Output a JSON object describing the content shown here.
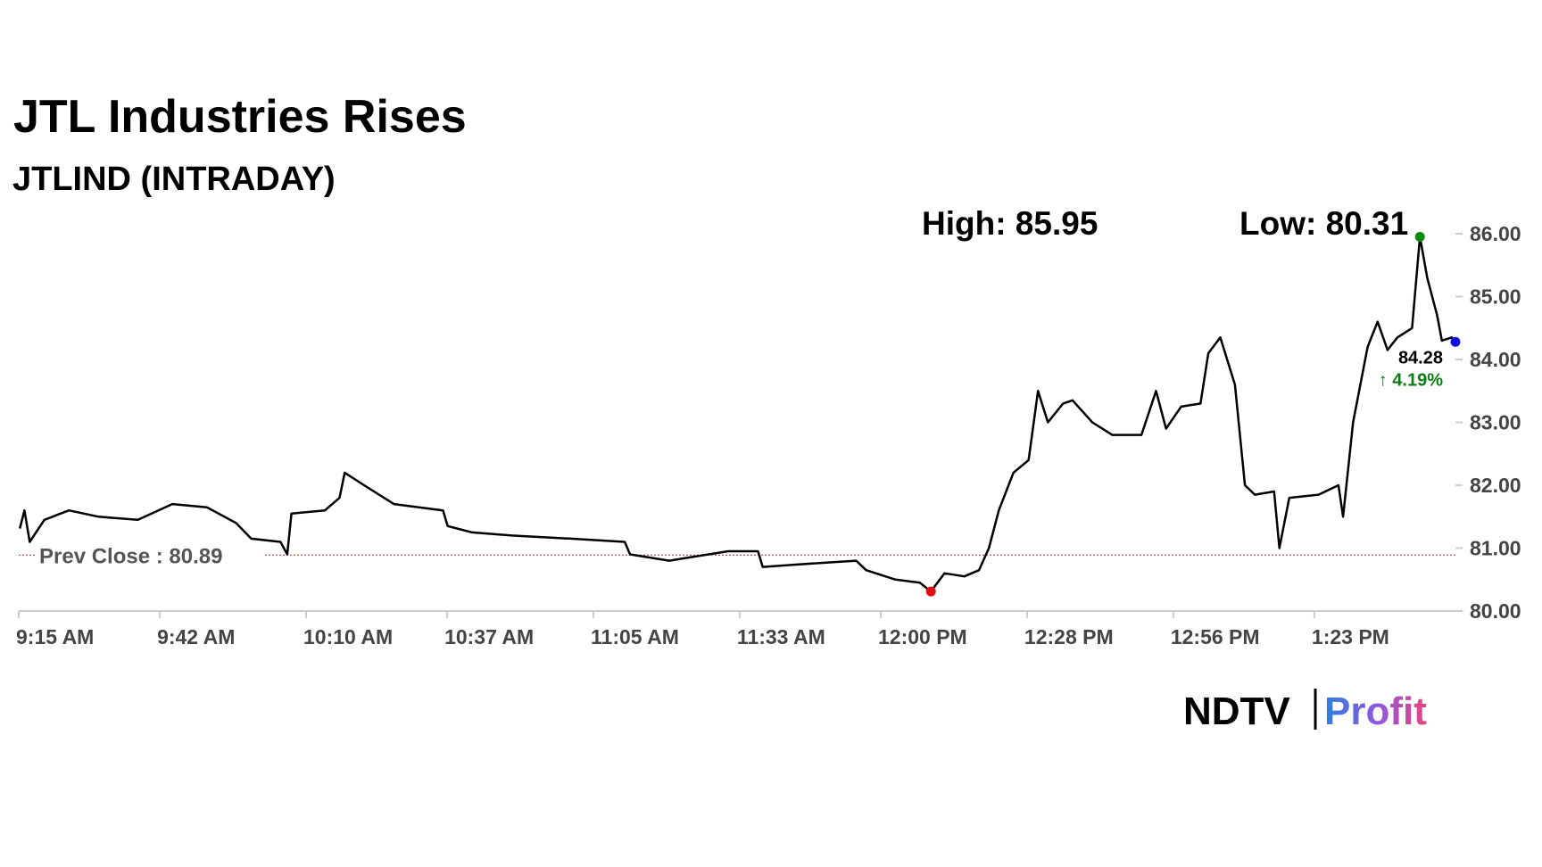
{
  "chart_data": {
    "type": "line",
    "title": "JTL Industries Rises",
    "subtitle": "JTLIND (INTRADAY)",
    "annotations": {
      "high": {
        "label": "High: 85.95",
        "value": 85.95
      },
      "low": {
        "label": "Low: 80.31",
        "value": 80.31
      }
    },
    "last_label": "84.28",
    "change_label": "↑ 4.19%",
    "prev_close": {
      "label": "Prev Close : 80.89",
      "value": 80.89,
      "color": "#b22222"
    },
    "logo": {
      "left": "NDTV",
      "right": "Profit"
    },
    "x": [
      0.2,
      1.1,
      2.1,
      4.9,
      9.6,
      15.3,
      22.8,
      29.4,
      36.0,
      41.6,
      44.5,
      50.1,
      51.4,
      52.2,
      58.6,
      61.4,
      62.4,
      66.1,
      71.8,
      81.2,
      82.1,
      86.8,
      94.4,
      105.7,
      116.0,
      117.0,
      124.5,
      135.8,
      141.5,
      142.4,
      150.9,
      160.3,
      162.2,
      167.8,
      172.5,
      174.6,
      177.2,
      181.0,
      183.8,
      185.7,
      187.6,
      190.4,
      193.3,
      195.1,
      197.0,
      199.9,
      201.7,
      205.5,
      209.3,
      214.9,
      217.7,
      219.6,
      222.5,
      226.2,
      227.7,
      230.0,
      232.8,
      234.7,
      236.6,
      240.3,
      241.3,
      243.2,
      248.8,
      252.6,
      253.5,
      255.4,
      258.2,
      260.1,
      262.0,
      263.9,
      266.7,
      268.2,
      269.6,
      271.5,
      272.4,
      274.3,
      275
    ],
    "series": [
      {
        "name": "JTLIND",
        "color": "#000000",
        "values": [
          81.31,
          81.6,
          81.1,
          81.45,
          81.6,
          81.5,
          81.45,
          81.7,
          81.65,
          81.4,
          81.15,
          81.1,
          80.9,
          81.55,
          81.6,
          81.8,
          82.2,
          82.0,
          81.7,
          81.6,
          81.35,
          81.25,
          81.2,
          81.15,
          81.1,
          80.9,
          80.8,
          80.95,
          80.95,
          80.7,
          80.75,
          80.8,
          80.65,
          80.5,
          80.45,
          80.31,
          80.6,
          80.55,
          80.65,
          81.0,
          81.6,
          82.2,
          82.4,
          83.5,
          83.0,
          83.3,
          83.35,
          83.0,
          82.8,
          82.8,
          83.5,
          82.9,
          83.25,
          83.3,
          84.1,
          84.35,
          83.6,
          82.0,
          81.85,
          81.9,
          81.0,
          81.8,
          81.85,
          82.0,
          81.5,
          83.0,
          84.2,
          84.6,
          84.15,
          84.35,
          84.5,
          85.95,
          85.3,
          84.7,
          84.3,
          84.35,
          84.28
        ]
      }
    ],
    "marker_colors": {
      "high": "#0a8a0a",
      "low": "#e01010",
      "last": "#1010e0"
    },
    "xlim": [
      0,
      275
    ],
    "xticks": [
      {
        "value": 0,
        "label": "9:15 AM"
      },
      {
        "value": 27,
        "label": "9:42 AM"
      },
      {
        "value": 55,
        "label": "10:10 AM"
      },
      {
        "value": 82,
        "label": "10:37 AM"
      },
      {
        "value": 110,
        "label": "11:05 AM"
      },
      {
        "value": 138,
        "label": "11:33 AM"
      },
      {
        "value": 165,
        "label": "12:00 PM"
      },
      {
        "value": 193,
        "label": "12:28 PM"
      },
      {
        "value": 221,
        "label": "12:56 PM"
      },
      {
        "value": 248,
        "label": "1:23 PM"
      }
    ],
    "ylim": [
      80,
      86
    ],
    "yticks": [
      {
        "value": 80,
        "label": "80.00"
      },
      {
        "value": 81,
        "label": "81.00"
      },
      {
        "value": 82,
        "label": "82.00"
      },
      {
        "value": 83,
        "label": "83.00"
      },
      {
        "value": 84,
        "label": "84.00"
      },
      {
        "value": 85,
        "label": "85.00"
      },
      {
        "value": 86,
        "label": "86.00"
      }
    ],
    "grid": false
  }
}
